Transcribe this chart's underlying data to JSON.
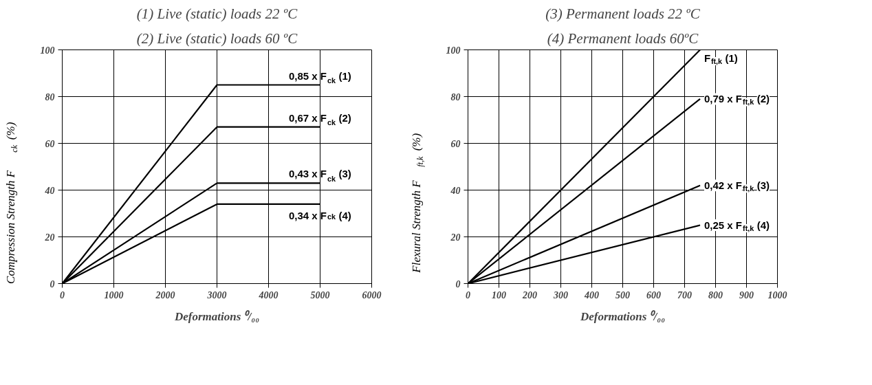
{
  "chart_data": [
    {
      "type": "line",
      "title": "(1) Live (static) loads 22 ºC",
      "subtitle": "(2) Live (static) loads 60 ºC",
      "xlabel": "Deformations ⁰/₀₀",
      "ylabel": "Compression Strength F$_{ck}$ (%)",
      "xlim": [
        0,
        6000
      ],
      "xticks": [
        0,
        1000,
        2000,
        3000,
        4000,
        5000,
        6000
      ],
      "ylim": [
        0,
        100
      ],
      "yticks": [
        0,
        20,
        40,
        60,
        80,
        100
      ],
      "grid": true,
      "x": [
        0,
        3000,
        5000
      ],
      "series": [
        {
          "name": "0,85 x F$_{ck}$ (1)",
          "color": "#000000",
          "values": [
            0,
            85,
            85
          ]
        },
        {
          "name": "0,67 x F$_{ck}$ (2)",
          "color": "#000000",
          "values": [
            0,
            67,
            67
          ]
        },
        {
          "name": "0,43 x F$_{ck}$ (3)",
          "color": "#000000",
          "values": [
            0,
            43,
            43
          ]
        },
        {
          "name": "0,34 x F$_{ck}$ (4)",
          "color": "#000000",
          "values": [
            0,
            34,
            34
          ]
        }
      ]
    },
    {
      "type": "line",
      "title": "(3) Permanent loads 22 ºC",
      "subtitle": "(4) Permanent loads 60ºC",
      "xlabel": "Deformations ⁰/₀₀",
      "ylabel": "Flexural Strength F$_{ft,k}$ (%)",
      "xlim": [
        0,
        1000
      ],
      "xticks": [
        0,
        100,
        200,
        300,
        400,
        500,
        600,
        700,
        800,
        900,
        1000
      ],
      "ylim": [
        0,
        100
      ],
      "yticks": [
        0,
        20,
        40,
        60,
        80,
        100
      ],
      "grid": true,
      "x": [
        0,
        750
      ],
      "series": [
        {
          "name": "F$_{ft,k}$ (1)",
          "color": "#000000",
          "values": [
            0,
            100
          ]
        },
        {
          "name": "0,79 x F$_{ft,k}$ (2)",
          "color": "#000000",
          "values": [
            0,
            79
          ]
        },
        {
          "name": "0,42 x F$_{ft,k}$ (3)",
          "color": "#000000",
          "values": [
            0,
            42
          ]
        },
        {
          "name": "0,25 x F$_{ft,k}$ (4)",
          "color": "#000000",
          "values": [
            0,
            25
          ]
        }
      ]
    }
  ]
}
